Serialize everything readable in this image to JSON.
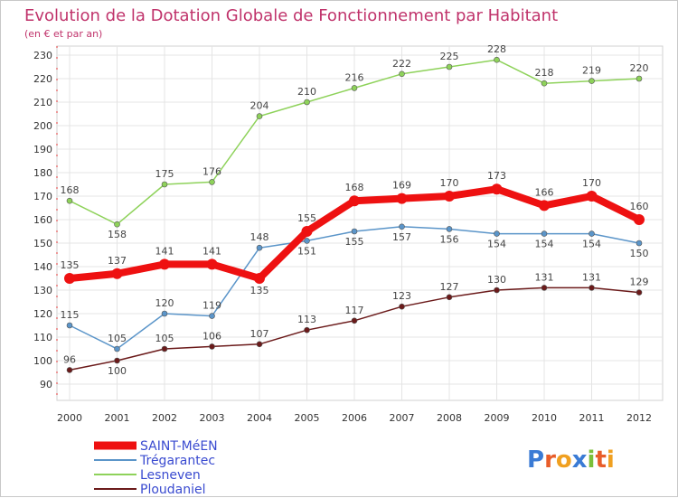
{
  "chart_data": {
    "type": "line",
    "title": "Evolution de la Dotation Globale de Fonctionnement par Habitant",
    "subtitle": "(en € et par an)",
    "x": [
      "2000",
      "2001",
      "2002",
      "2003",
      "2004",
      "2005",
      "2006",
      "2007",
      "2008",
      "2009",
      "2010",
      "2011",
      "2012"
    ],
    "ylim": [
      90,
      230
    ],
    "yticks": [
      90,
      100,
      110,
      120,
      130,
      140,
      150,
      160,
      170,
      180,
      190,
      200,
      210,
      220,
      230
    ],
    "grid": true,
    "legend_position": "bottom-left",
    "series": [
      {
        "name": "Lesneven",
        "color": "#8ed25a",
        "values": [
          168,
          158,
          175,
          176,
          204,
          210,
          216,
          222,
          225,
          228,
          218,
          219,
          220
        ],
        "labels_below": [
          1
        ]
      },
      {
        "name": "Trégarantec",
        "color": "#5b95c9",
        "values": [
          115,
          105,
          120,
          119,
          148,
          151,
          155,
          157,
          156,
          154,
          154,
          154,
          150
        ],
        "labels_below": [
          5,
          6,
          7,
          8,
          9,
          10,
          11,
          12
        ]
      },
      {
        "name": "Ploudaniel",
        "color": "#6b1a1a",
        "values": [
          96,
          100,
          105,
          106,
          107,
          113,
          117,
          123,
          127,
          130,
          131,
          131,
          129
        ],
        "labels_below": [
          1
        ]
      },
      {
        "name": "SAINT-MéEN",
        "color": "#ee1111",
        "values": [
          135,
          137,
          141,
          141,
          135,
          155,
          168,
          169,
          170,
          173,
          166,
          170,
          160
        ],
        "labels_below": [
          4
        ],
        "highlight": true
      }
    ]
  },
  "legend_items": [
    "SAINT-MéEN",
    "Trégarantec",
    "Lesneven",
    "Ploudaniel"
  ],
  "logo": {
    "text": "Proxiti"
  }
}
